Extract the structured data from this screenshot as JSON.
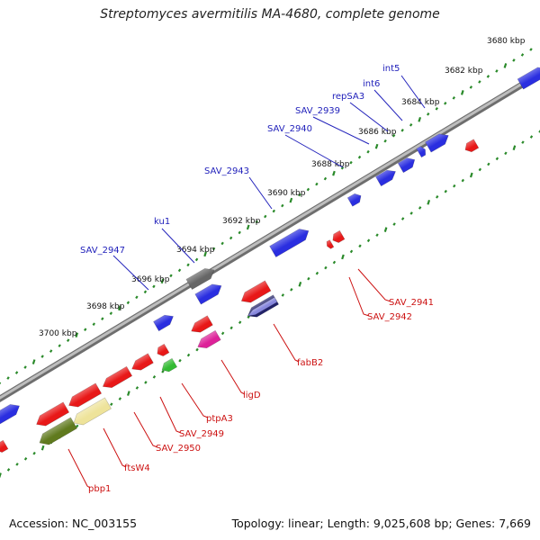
{
  "title": "Streptomyces avermitilis MA-4680, complete genome",
  "footer": {
    "accession": "Accession: NC_003155",
    "summary": "Topology: linear; Length: 9,025,608 bp; Genes: 7,669"
  },
  "colors": {
    "forward_gene": "#2a2ee0",
    "reverse_gene": "#e81818",
    "upper_label": "#2222bb",
    "lower_label": "#cc1111",
    "tick": "#2a8a2a",
    "backbone": "#8a8a8a"
  },
  "ticks": [
    {
      "label": "3680 kbp"
    },
    {
      "label": "3682 kbp"
    },
    {
      "label": "3684 kbp"
    },
    {
      "label": "3686 kbp"
    },
    {
      "label": "3688 kbp"
    },
    {
      "label": "3690 kbp"
    },
    {
      "label": "3692 kbp"
    },
    {
      "label": "3694 kbp"
    },
    {
      "label": "3696 kbp"
    },
    {
      "label": "3698 kbp"
    },
    {
      "label": "3700 kbp"
    }
  ],
  "upper_labels": [
    "int5",
    "int6",
    "repSA3",
    "SAV_2939",
    "SAV_2940",
    "SAV_2943",
    "ku1",
    "SAV_2947"
  ],
  "lower_labels": [
    "SAV_2941",
    "SAV_2942",
    "fabB2",
    "ligD",
    "ptpA3",
    "SAV_2949",
    "SAV_2950",
    "ftsW4",
    "pbp1"
  ]
}
